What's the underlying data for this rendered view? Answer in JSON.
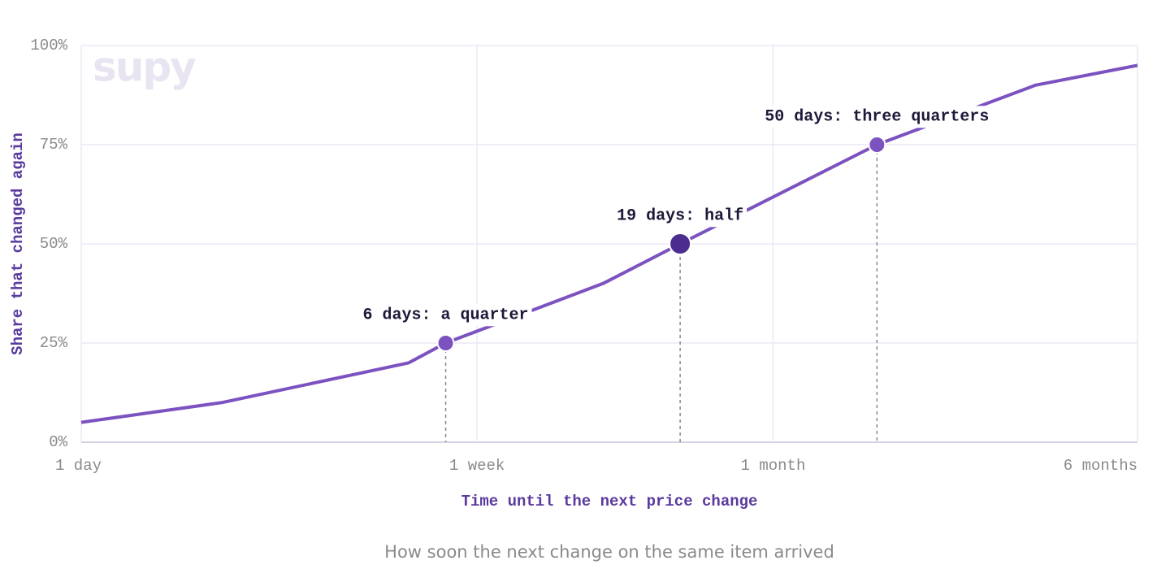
{
  "chart_data": {
    "type": "line",
    "watermark": "supy",
    "x_label": "Time until the next price change",
    "y_label": "Share that changed again",
    "caption": "How soon the next change on the same item arrived",
    "x": [
      1,
      2,
      5,
      6,
      13,
      19,
      50,
      109,
      180
    ],
    "series": [
      {
        "name": "Share that changed again",
        "color": "#7b52c0",
        "values": [
          5,
          10,
          20,
          25,
          40,
          50,
          75,
          90,
          95
        ]
      }
    ],
    "xscale": "log",
    "xlim": [
      1,
      180
    ],
    "xticks": [
      {
        "value": 1,
        "label": "1 day"
      },
      {
        "value": 7,
        "label": "1 week"
      },
      {
        "value": 30,
        "label": "1 month"
      },
      {
        "value": 180,
        "label": "6 months"
      }
    ],
    "ylim": [
      0,
      100
    ],
    "yticks": [
      {
        "value": 0,
        "label": "0%"
      },
      {
        "value": 25,
        "label": "25%"
      },
      {
        "value": 50,
        "label": "50%"
      },
      {
        "value": 75,
        "label": "75%"
      },
      {
        "value": 100,
        "label": "100%"
      }
    ],
    "grid": true,
    "annotations": [
      {
        "x": 6,
        "y": 25,
        "label": "6 days: a quarter",
        "color": "#7b52c0",
        "highlight": false
      },
      {
        "x": 19,
        "y": 50,
        "label": "19 days: half",
        "color": "#4b2d8f",
        "highlight": true
      },
      {
        "x": 50,
        "y": 75,
        "label": "50 days: three quarters",
        "color": "#7b52c0",
        "highlight": false
      }
    ]
  }
}
